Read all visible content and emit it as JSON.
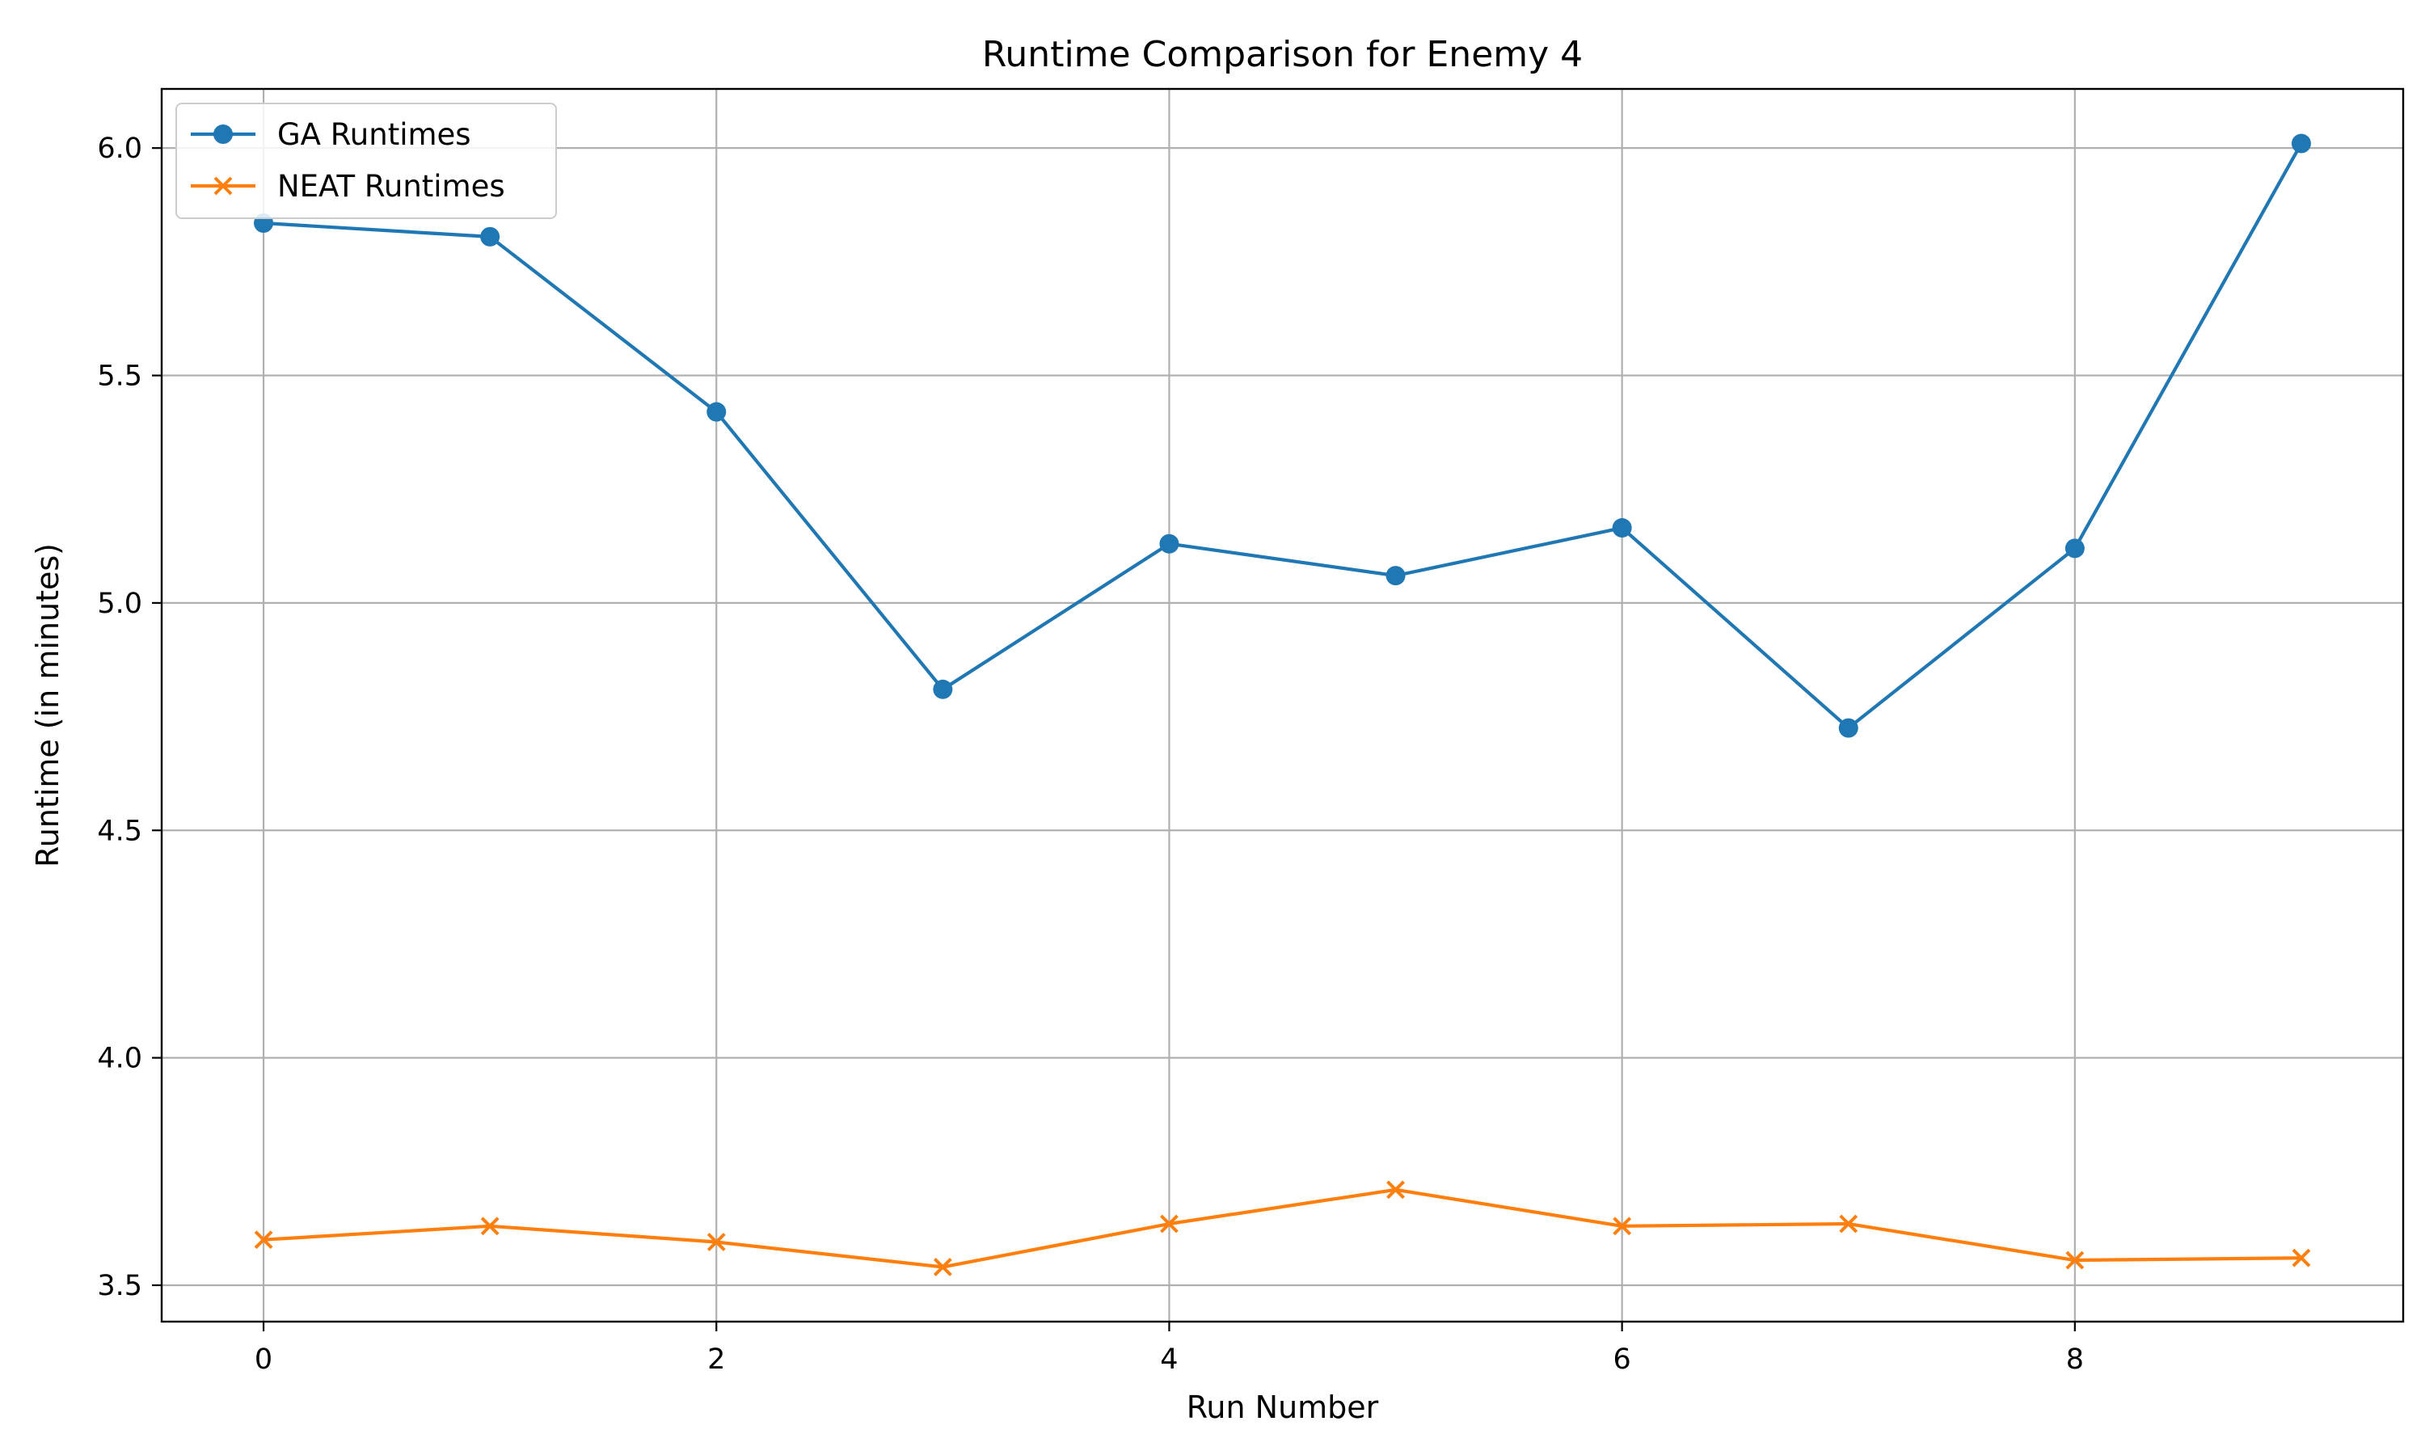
{
  "chart_data": {
    "type": "line",
    "title": "Runtime Comparison for Enemy 4",
    "xlabel": "Run Number",
    "ylabel": "Runtime (in minutes)",
    "xlim": [
      -0.45,
      9.45
    ],
    "ylim": [
      3.42,
      6.13
    ],
    "xticks": [
      0,
      2,
      4,
      6,
      8
    ],
    "xtick_labels": [
      "0",
      "2",
      "4",
      "6",
      "8"
    ],
    "yticks": [
      3.5,
      4.0,
      4.5,
      5.0,
      5.5,
      6.0
    ],
    "ytick_labels": [
      "3.5",
      "4.0",
      "4.5",
      "5.0",
      "5.5",
      "6.0"
    ],
    "grid": true,
    "legend_position": "top-left",
    "x": [
      0,
      1,
      2,
      3,
      4,
      5,
      6,
      7,
      8,
      9
    ],
    "series": [
      {
        "name": "GA Runtimes",
        "color": "#1f77b4",
        "marker": "circle",
        "values": [
          5.835,
          5.805,
          5.42,
          4.81,
          5.13,
          5.06,
          5.165,
          4.725,
          5.12,
          6.01
        ]
      },
      {
        "name": "NEAT Runtimes",
        "color": "#ff7f0e",
        "marker": "x",
        "values": [
          3.6,
          3.63,
          3.595,
          3.54,
          3.635,
          3.71,
          3.63,
          3.635,
          3.555,
          3.56
        ]
      }
    ]
  }
}
